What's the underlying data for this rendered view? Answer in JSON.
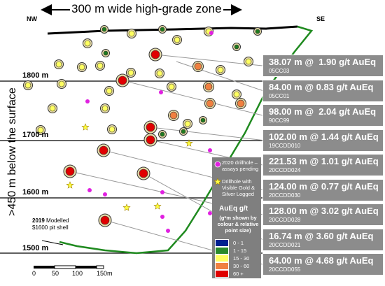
{
  "header": {
    "title": "300 m wide high-grade zone",
    "left_direction": "NW",
    "right_direction": "SE"
  },
  "depth_label": ">450 m below the surface",
  "elevations": [
    "1800 m",
    "1700 m",
    "1600 m",
    "1500 m"
  ],
  "pit_shell_label": {
    "year": "2019",
    "line1": "Modelled",
    "line2": "$1600 pit shell"
  },
  "intercepts": [
    {
      "grade": "38.07 m @  1.90 g/t AuEq",
      "hole": "05CC03"
    },
    {
      "grade": "84.00 m @ 0.83 g/t AuEq",
      "hole": "05CC01"
    },
    {
      "grade": "98.00 m @  2.04 g/t AuEq",
      "hole": "90CC99"
    },
    {
      "grade": "102.00 m @ 1.44 g/t AuEq",
      "hole": "19CCDD010"
    },
    {
      "grade": "221.53 m @ 1.01 g/t AuEq",
      "hole": "20CCDD024"
    },
    {
      "grade": "124.00 m @ 0.77 g/t AuEq",
      "hole": "20CCDD030"
    },
    {
      "grade": "128.00 m @ 3.02 g/t AuEq",
      "hole": "20CCDD028"
    },
    {
      "grade": "16.74 m @ 3.60 g/t AuEq",
      "hole": "20CCDD021"
    },
    {
      "grade": "64.00 m @ 4.68 g/t AuEq",
      "hole": "20CCDD055"
    }
  ],
  "legend": {
    "pending": "2020 drillhole – assays pending",
    "visible_gold": "Drillhole with Visible Gold & Silver Logged",
    "title": "AuEq g/t",
    "note": "(g*m shown by colour & relative point size)",
    "classes": [
      "0 - 1",
      "1 - 15",
      "15 - 30",
      "30 - 60",
      "60 +"
    ]
  },
  "scale_bar": [
    "0",
    "50",
    "100",
    "150m"
  ]
}
